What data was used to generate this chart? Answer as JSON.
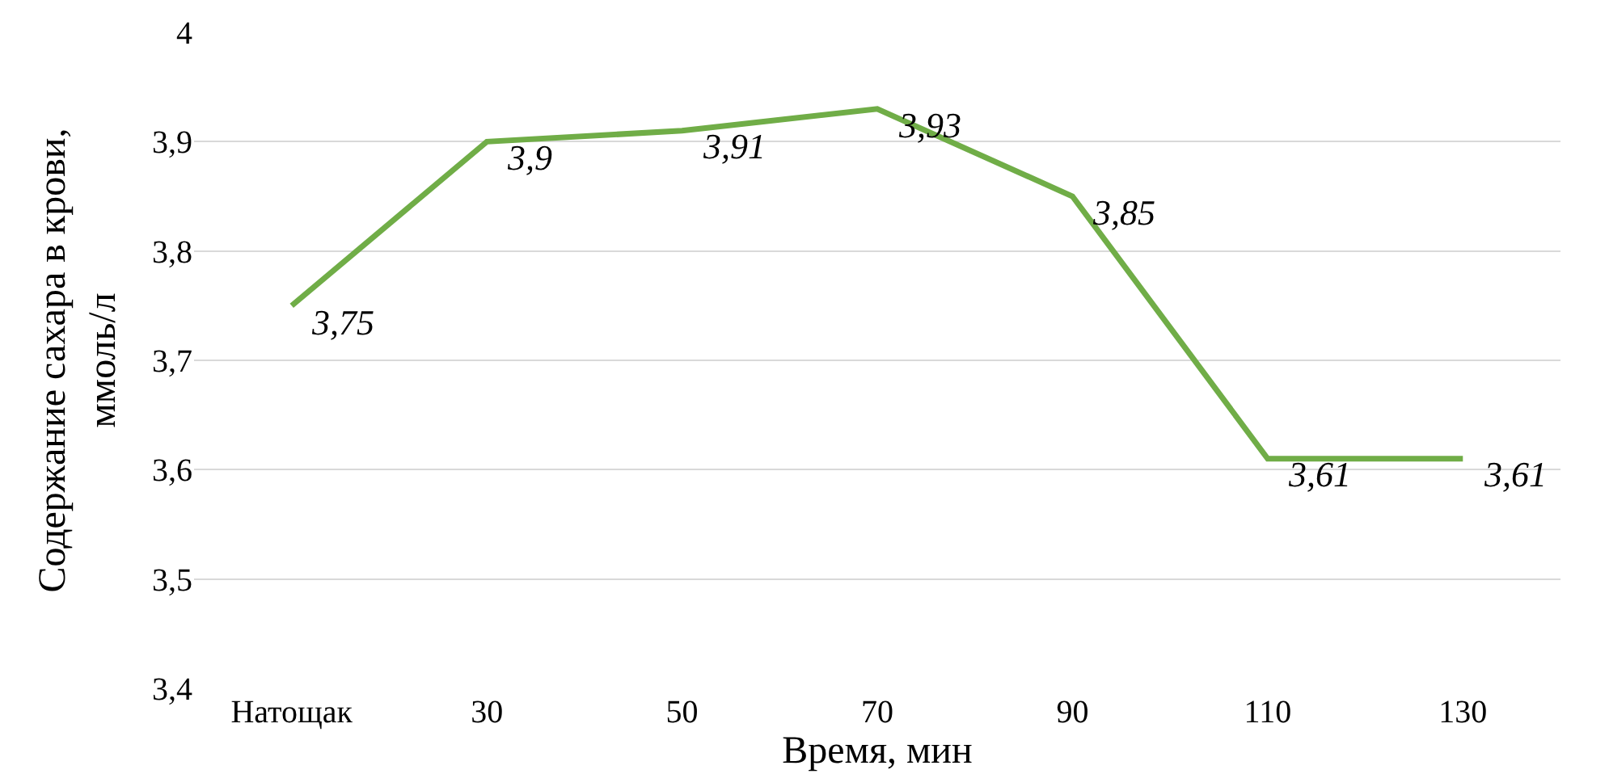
{
  "chart_data": {
    "type": "line",
    "xlabel": "Время, мин",
    "ylabel": "Содержание сахара в крови,\nммоль/л",
    "categories": [
      "Натощак",
      "30",
      "50",
      "70",
      "90",
      "110",
      "130"
    ],
    "series": [
      {
        "color": "#70ad47",
        "values": [
          3.75,
          3.9,
          3.91,
          3.93,
          3.85,
          3.61,
          3.61
        ],
        "value_labels": [
          "3,75",
          "3,9",
          "3,91",
          "3,93",
          "3,85",
          "3,61",
          "3,61"
        ]
      }
    ],
    "ylim": [
      3.4,
      4
    ],
    "yticks": [
      {
        "value": 3.4,
        "label": "3,4"
      },
      {
        "value": 3.5,
        "label": "3,5"
      },
      {
        "value": 3.6,
        "label": "3,6"
      },
      {
        "value": 3.7,
        "label": "3,7"
      },
      {
        "value": 3.8,
        "label": "3,8"
      },
      {
        "value": 3.9,
        "label": "3,9"
      },
      4
    ],
    "grid": "y",
    "marker": "none",
    "line_style": "solid"
  }
}
